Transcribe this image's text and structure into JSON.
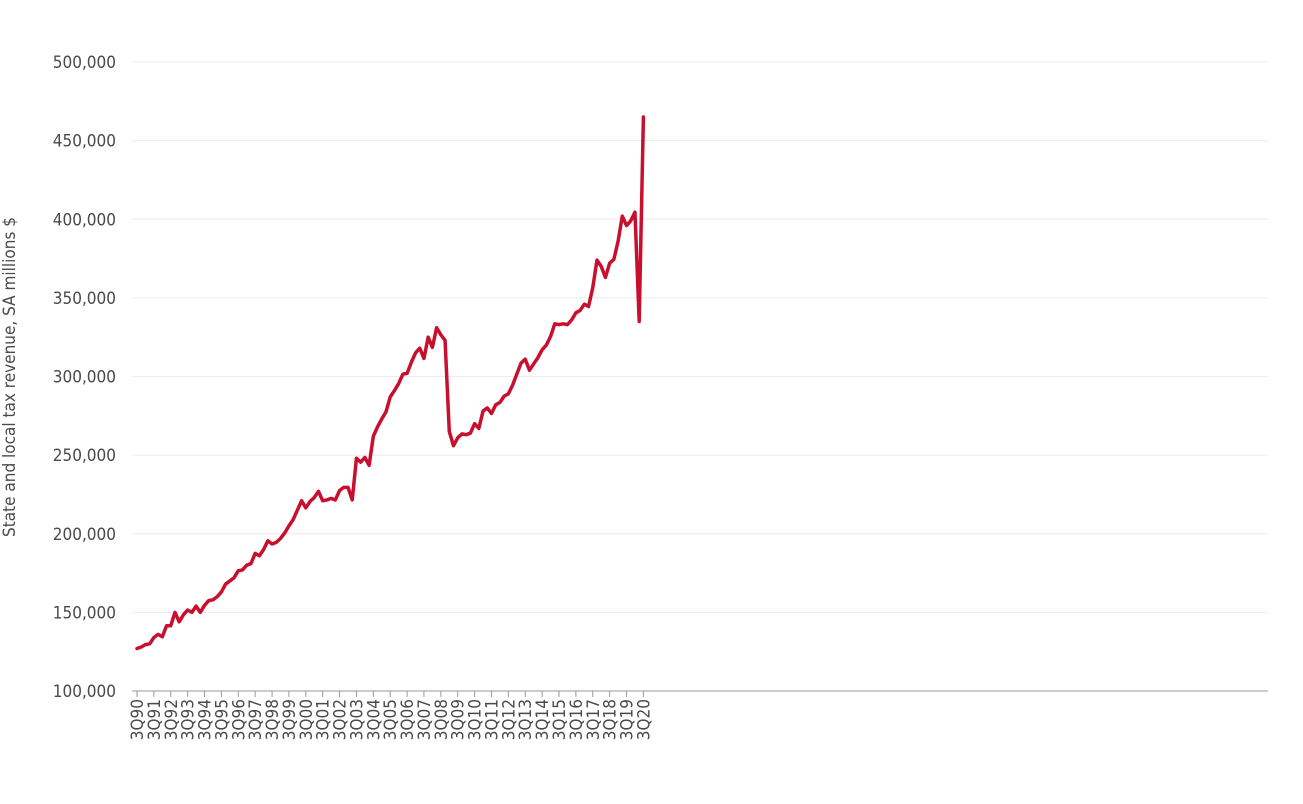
{
  "chart_data": {
    "type": "line",
    "title": "",
    "xlabel": "",
    "ylabel": "State and local tax revenue, SA millions $",
    "ylim": [
      100000,
      500000
    ],
    "yticks": [
      100000,
      150000,
      200000,
      250000,
      300000,
      350000,
      400000,
      450000,
      500000
    ],
    "ytick_labels": [
      "100,000",
      "150,000",
      "200,000",
      "250,000",
      "300,000",
      "350,000",
      "400,000",
      "450,000",
      "500,000"
    ],
    "xtick_labels": [
      "3Q90",
      "3Q91",
      "3Q92",
      "3Q93",
      "3Q94",
      "3Q95",
      "3Q96",
      "3Q97",
      "3Q98",
      "3Q99",
      "3Q00",
      "3Q01",
      "3Q02",
      "3Q03",
      "3Q04",
      "3Q05",
      "3Q06",
      "3Q07",
      "3Q08",
      "3Q09",
      "3Q10",
      "3Q11",
      "3Q12",
      "3Q13",
      "3Q14",
      "3Q15",
      "3Q16",
      "3Q17",
      "3Q18",
      "3Q19",
      "3Q20"
    ],
    "grid": true,
    "line_color": "#c8102e",
    "series": [
      {
        "name": "",
        "start_period": "3Q90",
        "frequency": "quarterly",
        "values": [
          127000,
          128000,
          129500,
          130000,
          134000,
          136000,
          134500,
          141500,
          141500,
          150000,
          144000,
          148500,
          151500,
          150000,
          154000,
          150000,
          154500,
          157500,
          158000,
          160000,
          163000,
          168000,
          170000,
          172000,
          176500,
          177000,
          180000,
          181000,
          187500,
          186000,
          190000,
          195500,
          193500,
          194500,
          197000,
          200500,
          205000,
          209000,
          215000,
          221000,
          216500,
          220500,
          223000,
          227000,
          221000,
          221500,
          222500,
          221500,
          227500,
          229500,
          229500,
          221500,
          248000,
          245500,
          248500,
          243500,
          262000,
          268000,
          273000,
          277500,
          287000,
          291000,
          295500,
          301500,
          302000,
          309000,
          315000,
          318000,
          311500,
          325000,
          318500,
          331000,
          326500,
          323000,
          265000,
          256000,
          261000,
          263500,
          263000,
          264000,
          270000,
          267000,
          278000,
          280000,
          276500,
          282000,
          283500,
          287500,
          289000,
          294500,
          301500,
          308500,
          311000,
          304000,
          308000,
          312000,
          317000,
          320000,
          325500,
          333500,
          333000,
          333500,
          333000,
          336000,
          340500,
          342000,
          346000,
          344500,
          356500,
          374000,
          370000,
          363000,
          372000,
          374500,
          386000,
          402000,
          396000,
          399000,
          404500,
          335000,
          465000
        ]
      }
    ]
  }
}
